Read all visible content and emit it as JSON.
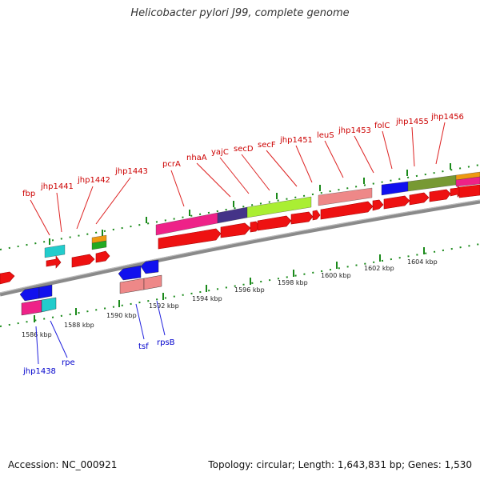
{
  "title": "Helicobacter pylori J99, complete genome",
  "footer": {
    "accession": "Accession: NC_000921",
    "summary": "Topology: circular; Length: 1,643,831 bp; Genes: 1,530"
  },
  "kbp_labels": [
    "1586 kbp",
    "1588 kbp",
    "1590 kbp",
    "1592 kbp",
    "1594 kbp",
    "1596 kbp",
    "1598 kbp",
    "1600 kbp",
    "1602 kbp",
    "1604 kbp"
  ],
  "genes_top": [
    {
      "id": "fbp",
      "label": "fbp"
    },
    {
      "id": "jhp1441",
      "label": "jhp1441"
    },
    {
      "id": "jhp1442",
      "label": "jhp1442"
    },
    {
      "id": "jhp1443",
      "label": "jhp1443"
    },
    {
      "id": "pcrA",
      "label": "pcrA"
    },
    {
      "id": "nhaA",
      "label": "nhaA"
    },
    {
      "id": "yajC",
      "label": "yajC"
    },
    {
      "id": "secD",
      "label": "secD"
    },
    {
      "id": "secF",
      "label": "secF"
    },
    {
      "id": "jhp1451",
      "label": "jhp1451"
    },
    {
      "id": "leuS",
      "label": "leuS"
    },
    {
      "id": "jhp1453",
      "label": "jhp1453"
    },
    {
      "id": "folC",
      "label": "folC"
    },
    {
      "id": "jhp1455",
      "label": "jhp1455"
    },
    {
      "id": "jhp1456",
      "label": "jhp1456"
    }
  ],
  "genes_bottom": [
    {
      "id": "jhp1438",
      "label": "jhp1438"
    },
    {
      "id": "rpe",
      "label": "rpe"
    },
    {
      "id": "tsf",
      "label": "tsf"
    },
    {
      "id": "rpsB",
      "label": "rpsB"
    }
  ],
  "colors": {
    "backbone": "#8a8a8a",
    "tick": "#1a8a1a",
    "forward_gene": "#ee1111",
    "top_label": "#cc0000",
    "bottom_label": "#0000cc",
    "magenta": "#ee2288",
    "navy": "#443388",
    "lime": "#aaee33",
    "salmon": "#ee8888",
    "blue": "#1111ee",
    "olive": "#779933",
    "orange": "#ee9911",
    "cyan": "#22cccc",
    "green": "#22aa22"
  }
}
